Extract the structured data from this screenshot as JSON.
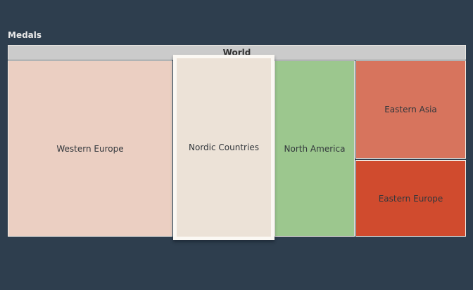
{
  "page": {
    "background_color": "#2e3e4e"
  },
  "chart_data": {
    "type": "treemap",
    "title": "Medals",
    "legend": "none",
    "root": {
      "label": "World",
      "color": "#cbcbcb"
    },
    "regions": [
      {
        "label": "Western Europe",
        "color": "#ebcfc2",
        "relative_area_pct": 36,
        "highlighted": false
      },
      {
        "label": "Nordic Countries",
        "color": "#ece2d7",
        "relative_area_pct": 23,
        "highlighted": true
      },
      {
        "label": "North America",
        "color": "#9cc78e",
        "relative_area_pct": 17,
        "highlighted": false
      },
      {
        "label": "Eastern Asia",
        "color": "#d7745d",
        "relative_area_pct": 13,
        "highlighted": false
      },
      {
        "label": "Eastern Europe",
        "color": "#d04b2e",
        "relative_area_pct": 11,
        "highlighted": false
      }
    ]
  }
}
